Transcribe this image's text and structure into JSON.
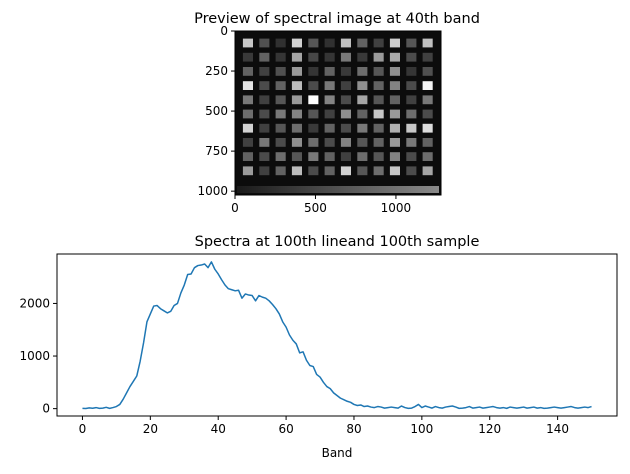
{
  "chart_data": [
    {
      "type": "heatmap",
      "title": "Preview of spectral image at 40th band",
      "xlim": [
        0,
        1280
      ],
      "ylim": [
        1024,
        0
      ],
      "x_ticks": [
        0,
        500,
        1000
      ],
      "x_tick_labels": [
        "0",
        "500",
        "1000"
      ],
      "y_ticks": [
        0,
        250,
        500,
        750,
        1000
      ],
      "y_tick_labels": [
        "0",
        "250",
        "500",
        "750",
        "1000"
      ],
      "colormap": "gray",
      "background_color": "#0c0c0c",
      "grid_rows": 10,
      "grid_cols": 12,
      "patch_intensities": [
        [
          0.75,
          0.22,
          0.08,
          0.8,
          0.25,
          0.08,
          0.72,
          0.3,
          0.15,
          0.78,
          0.25,
          0.72
        ],
        [
          0.12,
          0.3,
          0.1,
          0.6,
          0.18,
          0.1,
          0.4,
          0.12,
          0.55,
          0.62,
          0.2,
          0.15
        ],
        [
          0.3,
          0.15,
          0.22,
          0.55,
          0.1,
          0.3,
          0.12,
          0.35,
          0.25,
          0.5,
          0.1,
          0.22
        ],
        [
          0.88,
          0.2,
          0.3,
          0.7,
          0.2,
          0.4,
          0.15,
          0.5,
          0.3,
          0.45,
          0.2,
          0.95
        ],
        [
          0.4,
          0.15,
          0.25,
          0.55,
          1.0,
          0.45,
          0.2,
          0.6,
          0.25,
          0.3,
          0.15,
          0.4
        ],
        [
          0.35,
          0.2,
          0.4,
          0.45,
          0.25,
          0.15,
          0.5,
          0.3,
          0.75,
          0.55,
          0.35,
          0.2
        ],
        [
          0.8,
          0.15,
          0.25,
          0.35,
          0.12,
          0.3,
          0.2,
          0.4,
          0.3,
          0.65,
          0.75,
          0.85
        ],
        [
          0.15,
          0.4,
          0.2,
          0.5,
          0.35,
          0.2,
          0.45,
          0.25,
          0.3,
          0.55,
          0.4,
          0.3
        ],
        [
          0.3,
          0.2,
          0.35,
          0.25,
          0.4,
          0.3,
          0.15,
          0.35,
          0.25,
          0.45,
          0.2,
          0.35
        ],
        [
          0.55,
          0.15,
          0.3,
          0.7,
          0.2,
          0.3,
          0.8,
          0.25,
          0.35,
          0.75,
          0.2,
          0.6
        ]
      ]
    },
    {
      "type": "line",
      "title": "Spectra at 100th lineand 100th sample",
      "xlabel": "Band",
      "ylabel": "",
      "xlim": [
        -7.5,
        157.5
      ],
      "ylim": [
        -140,
        2940
      ],
      "x_ticks": [
        0,
        20,
        40,
        60,
        80,
        100,
        120,
        140
      ],
      "x_tick_labels": [
        "0",
        "20",
        "40",
        "60",
        "80",
        "100",
        "120",
        "140"
      ],
      "y_ticks": [
        0,
        1000,
        2000
      ],
      "y_tick_labels": [
        "0",
        "1000",
        "2000"
      ],
      "series": [
        {
          "color": "#1f77b4",
          "x": [
            0,
            1,
            2,
            3,
            4,
            5,
            6,
            7,
            8,
            9,
            10,
            11,
            12,
            13,
            14,
            15,
            16,
            17,
            18,
            19,
            20,
            21,
            22,
            23,
            24,
            25,
            26,
            27,
            28,
            29,
            30,
            31,
            32,
            33,
            34,
            35,
            36,
            37,
            38,
            39,
            40,
            41,
            42,
            43,
            44,
            45,
            46,
            47,
            48,
            49,
            50,
            51,
            52,
            53,
            54,
            55,
            56,
            57,
            58,
            59,
            60,
            61,
            62,
            63,
            64,
            65,
            66,
            67,
            68,
            69,
            70,
            71,
            72,
            73,
            74,
            75,
            76,
            77,
            78,
            79,
            80,
            81,
            82,
            83,
            84,
            85,
            86,
            87,
            88,
            89,
            90,
            91,
            92,
            93,
            94,
            95,
            96,
            97,
            98,
            99,
            100,
            101,
            102,
            103,
            104,
            105,
            106,
            107,
            108,
            109,
            110,
            111,
            112,
            113,
            114,
            115,
            116,
            117,
            118,
            119,
            120,
            121,
            122,
            123,
            124,
            125,
            126,
            127,
            128,
            129,
            130,
            131,
            132,
            133,
            134,
            135,
            136,
            137,
            138,
            139,
            140,
            141,
            142,
            143,
            144,
            145,
            146,
            147,
            148,
            149,
            150
          ],
          "y": [
            5,
            2,
            15,
            8,
            20,
            5,
            10,
            25,
            5,
            20,
            40,
            80,
            180,
            300,
            420,
            520,
            620,
            900,
            1250,
            1650,
            1800,
            1950,
            1960,
            1900,
            1860,
            1820,
            1850,
            1960,
            2000,
            2200,
            2350,
            2550,
            2560,
            2680,
            2720,
            2730,
            2750,
            2680,
            2790,
            2650,
            2560,
            2450,
            2350,
            2280,
            2260,
            2240,
            2250,
            2100,
            2180,
            2160,
            2150,
            2050,
            2150,
            2120,
            2100,
            2050,
            1980,
            1900,
            1800,
            1650,
            1550,
            1400,
            1300,
            1230,
            1060,
            1080,
            920,
            820,
            800,
            650,
            600,
            500,
            420,
            380,
            300,
            250,
            200,
            170,
            140,
            120,
            80,
            60,
            70,
            40,
            50,
            30,
            20,
            40,
            30,
            10,
            20,
            30,
            20,
            10,
            50,
            20,
            5,
            10,
            40,
            80,
            20,
            50,
            30,
            10,
            40,
            20,
            10,
            30,
            40,
            50,
            30,
            5,
            10,
            20,
            40,
            10,
            20,
            30,
            10,
            20,
            30,
            40,
            20,
            10,
            20,
            5,
            30,
            20,
            10,
            20,
            30,
            10,
            20,
            30,
            10,
            20,
            5,
            10,
            20,
            30,
            20,
            10,
            20,
            30,
            40,
            20,
            10,
            20,
            30,
            20,
            40
          ]
        }
      ]
    }
  ]
}
